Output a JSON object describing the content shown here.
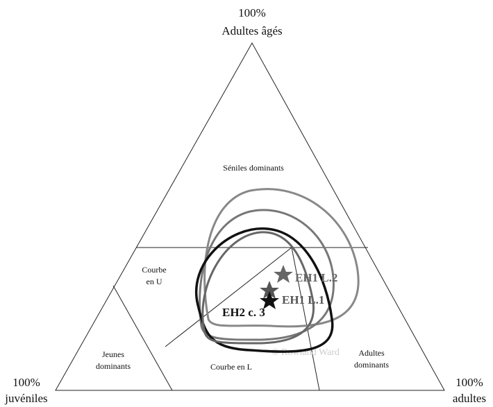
{
  "vertices": {
    "top": {
      "percent": "100%",
      "label": "Adultes âgés"
    },
    "left": {
      "percent": "100%",
      "label": "juvéniles"
    },
    "right": {
      "percent": "100%",
      "label": "adultes"
    }
  },
  "regions": [
    [
      "Séniles dominants"
    ],
    [
      "Courbe",
      "en U"
    ],
    [
      "Jeunes",
      "dominants"
    ],
    [
      "Courbe en L"
    ],
    [
      "Adultes",
      "dominants"
    ]
  ],
  "samples": [
    "EH1 L.2",
    "EH1 L.1",
    "EH2 c. 3"
  ],
  "watermark": "© Rowland Ward"
}
